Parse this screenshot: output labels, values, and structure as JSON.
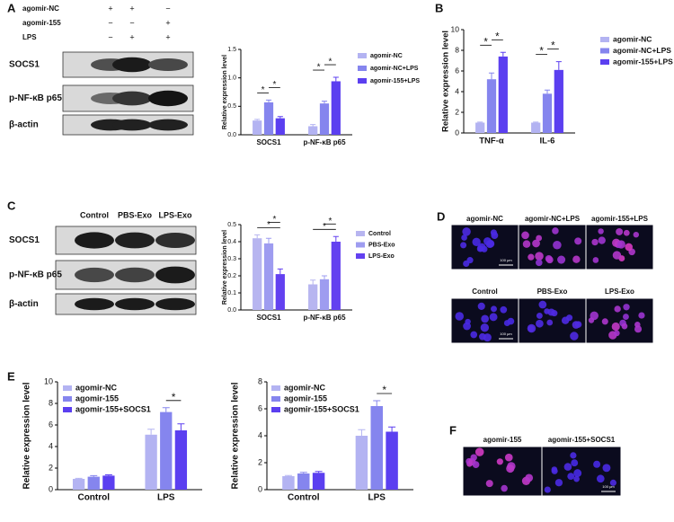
{
  "panel_labels": [
    "A",
    "B",
    "C",
    "D",
    "E",
    "F"
  ],
  "blot_a": {
    "conditions": [
      {
        "name": "agomir-NC",
        "signs": [
          "+",
          "+",
          "−"
        ]
      },
      {
        "name": "agomir-155",
        "signs": [
          "−",
          "−",
          "+"
        ]
      },
      {
        "name": "LPS",
        "signs": [
          "−",
          "+",
          "+"
        ]
      }
    ],
    "proteins": [
      "SOCS1",
      "p-NF-κB p65",
      "β-actin"
    ]
  },
  "blot_c": {
    "columns": [
      "Control",
      "PBS-Exo",
      "LPS-Exo"
    ],
    "proteins": [
      "SOCS1",
      "p-NF-κB p65",
      "β-actin"
    ]
  },
  "images_d": {
    "row1": [
      "agomir-NC",
      "agomir-NC+LPS",
      "agomir-155+LPS"
    ],
    "row2": [
      "Control",
      "PBS-Exo",
      "LPS-Exo"
    ],
    "scale": "100 μm"
  },
  "images_f": {
    "labels": [
      "agomir-155",
      "agomir-155+SOCS1"
    ],
    "scale": "100 μm"
  },
  "chart_data": [
    {
      "type": "bar",
      "ylabel": "Relative expression level",
      "categories": [
        "SOCS1",
        "p-NF-κB p65"
      ],
      "series": [
        {
          "name": "agomir-NC",
          "color": "#b3b3f2",
          "values": [
            0.25,
            0.15
          ],
          "errors": [
            0.02,
            0.03
          ]
        },
        {
          "name": "agomir-NC+LPS",
          "color": "#8585ee",
          "values": [
            0.57,
            0.55
          ],
          "errors": [
            0.04,
            0.04
          ]
        },
        {
          "name": "agomir-155+LPS",
          "color": "#5b3ff0",
          "values": [
            0.29,
            0.94
          ],
          "errors": [
            0.03,
            0.07
          ]
        }
      ],
      "ylim": [
        0,
        1.5
      ],
      "yticks": [
        {
          "value": 0,
          "label": "0.0"
        },
        {
          "value": 0.5,
          "label": "0.5"
        },
        {
          "value": 1,
          "label": "1.0"
        },
        {
          "value": 1.5,
          "label": "1.5"
        }
      ],
      "significance": [
        {
          "label": "*",
          "category": 0,
          "from": 0,
          "to": 1
        },
        {
          "label": "*",
          "category": 0,
          "from": 1,
          "to": 2
        },
        {
          "label": "*",
          "category": 1,
          "from": 0,
          "to": 1
        },
        {
          "label": "*",
          "category": 1,
          "from": 1,
          "to": 2
        }
      ]
    },
    {
      "type": "bar",
      "ylabel": "Relative expression level",
      "categories": [
        "TNF-α",
        "IL-6"
      ],
      "series": [
        {
          "name": "agomir-NC",
          "color": "#b3b3f2",
          "values": [
            1.0,
            1.0
          ],
          "errors": [
            0.05,
            0.05
          ]
        },
        {
          "name": "agomir-NC+LPS",
          "color": "#8585ee",
          "values": [
            5.2,
            3.8
          ],
          "errors": [
            0.6,
            0.35
          ]
        },
        {
          "name": "agomir-155+LPS",
          "color": "#5b3ff0",
          "values": [
            7.4,
            6.1
          ],
          "errors": [
            0.4,
            0.8
          ]
        }
      ],
      "ylim": [
        0,
        10
      ],
      "yticks": [
        0,
        2,
        4,
        6,
        8,
        10
      ],
      "significance": [
        {
          "label": "*",
          "category": 0,
          "from": 0,
          "to": 1
        },
        {
          "label": "*",
          "category": 0,
          "from": 1,
          "to": 2
        },
        {
          "label": "*",
          "category": 1,
          "from": 0,
          "to": 1
        },
        {
          "label": "*",
          "category": 1,
          "from": 1,
          "to": 2
        }
      ]
    },
    {
      "type": "bar",
      "ylabel": "Relative expression level",
      "categories": [
        "SOCS1",
        "p-NF-κB p65"
      ],
      "series": [
        {
          "name": "Control",
          "color": "#b7b5f0",
          "values": [
            0.42,
            0.15
          ],
          "errors": [
            0.02,
            0.025
          ]
        },
        {
          "name": "PBS-Exo",
          "color": "#9e9cf0",
          "values": [
            0.39,
            0.18
          ],
          "errors": [
            0.03,
            0.02
          ]
        },
        {
          "name": "LPS-Exo",
          "color": "#6341f0",
          "values": [
            0.21,
            0.4
          ],
          "errors": [
            0.03,
            0.03
          ]
        }
      ],
      "ylim": [
        0,
        0.5
      ],
      "yticks": [
        {
          "value": 0,
          "label": "0.0"
        },
        {
          "value": 0.1,
          "label": "0.1"
        },
        {
          "value": 0.2,
          "label": "0.2"
        },
        {
          "value": 0.3,
          "label": "0.3"
        },
        {
          "value": 0.4,
          "label": "0.4"
        },
        {
          "value": 0.5,
          "label": "0.5"
        }
      ],
      "significance": [
        {
          "label": "*",
          "category": 0,
          "from": 0,
          "to": 2
        },
        {
          "label": "*",
          "category": 0,
          "from": 1,
          "to": 2
        },
        {
          "label": "*",
          "category": 1,
          "from": 0,
          "to": 2
        },
        {
          "label": "*",
          "category": 1,
          "from": 1,
          "to": 2
        }
      ]
    },
    {
      "type": "bar",
      "ylabel": "Relative expression level",
      "categories": [
        "Control",
        "LPS"
      ],
      "series": [
        {
          "name": "agomir-NC",
          "color": "#b3b3f2",
          "values": [
            1.0,
            5.1
          ],
          "errors": [
            0.05,
            0.5
          ]
        },
        {
          "name": "agomir-155",
          "color": "#8585ee",
          "values": [
            1.2,
            7.2
          ],
          "errors": [
            0.1,
            0.4
          ]
        },
        {
          "name": "agomir-155+SOCS1",
          "color": "#5b3ff0",
          "values": [
            1.3,
            5.5
          ],
          "errors": [
            0.08,
            0.6
          ]
        }
      ],
      "ylim": [
        0,
        10
      ],
      "yticks": [
        0,
        2,
        4,
        6,
        8,
        10
      ],
      "significance": [
        {
          "label": "*",
          "category": 1,
          "from": 1,
          "to": 2
        }
      ]
    },
    {
      "type": "bar",
      "ylabel": "Relative expression level",
      "categories": [
        "Control",
        "LPS"
      ],
      "series": [
        {
          "name": "agomir-NC",
          "color": "#b3b3f2",
          "values": [
            1.0,
            4.0
          ],
          "errors": [
            0.05,
            0.45
          ]
        },
        {
          "name": "agomir-155",
          "color": "#8585ee",
          "values": [
            1.2,
            6.2
          ],
          "errors": [
            0.08,
            0.4
          ]
        },
        {
          "name": "agomir-155+SOCS1",
          "color": "#5b3ff0",
          "values": [
            1.25,
            4.3
          ],
          "errors": [
            0.1,
            0.35
          ]
        }
      ],
      "ylim": [
        0,
        8
      ],
      "yticks": [
        0,
        2,
        4,
        6,
        8
      ],
      "significance": [
        {
          "label": "*",
          "category": 1,
          "from": 1,
          "to": 2
        }
      ]
    }
  ]
}
